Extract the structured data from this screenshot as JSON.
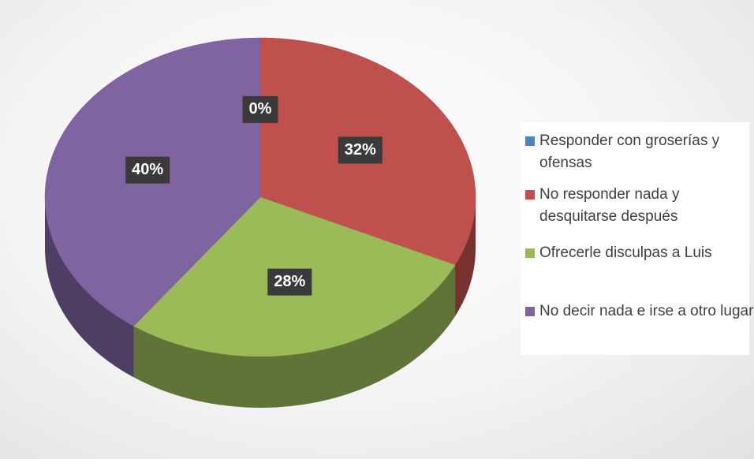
{
  "chart_data": {
    "type": "pie",
    "categories": [
      "Responder con groserías y ofensas",
      "No responder nada y desquitarse después",
      "Ofrecerle disculpas a Luis",
      "No decir nada e irse a otro lugar"
    ],
    "values": [
      0,
      32,
      28,
      40
    ],
    "value_labels": [
      "0%",
      "32%",
      "28%",
      "40%"
    ],
    "colors": [
      "#4f81bd",
      "#c0504d",
      "#9bbb59",
      "#8064a2"
    ],
    "legend": "right"
  }
}
